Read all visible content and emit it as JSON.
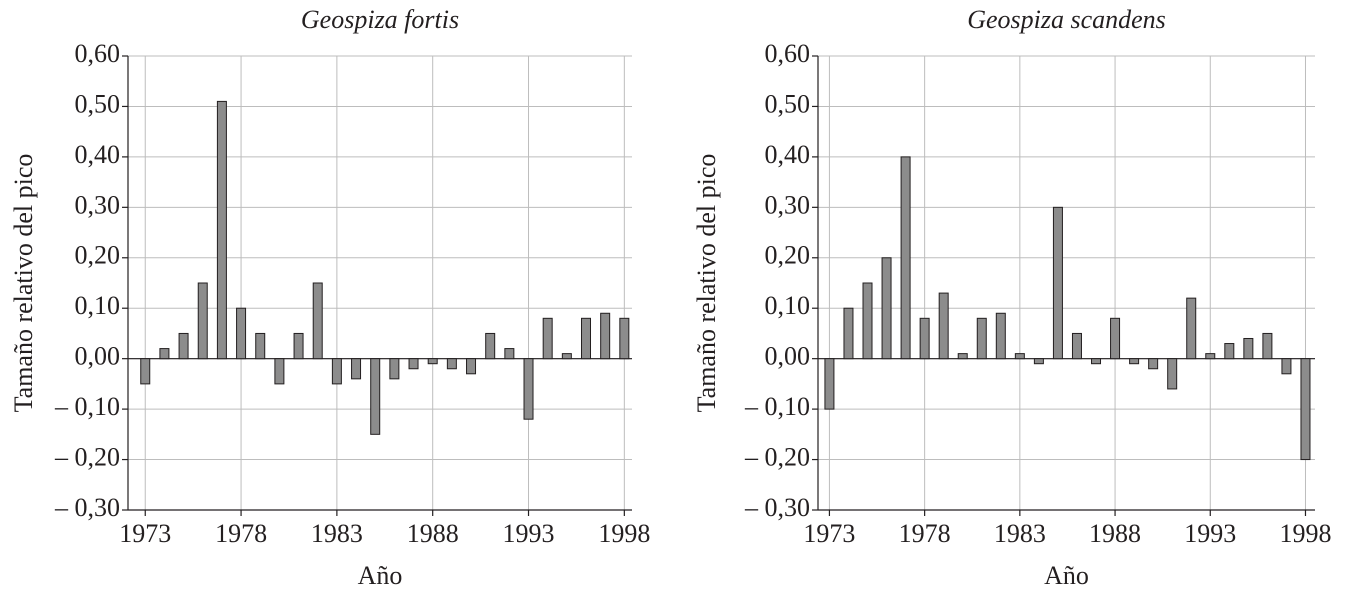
{
  "chart_data": [
    {
      "type": "bar",
      "title": "Geospiza fortis",
      "x_label": "Año",
      "y_label": "Tamaño relativo del pico",
      "x": [
        1973,
        1974,
        1975,
        1976,
        1977,
        1978,
        1979,
        1980,
        1981,
        1982,
        1983,
        1984,
        1985,
        1986,
        1987,
        1988,
        1989,
        1990,
        1991,
        1992,
        1993,
        1994,
        1995,
        1996,
        1997,
        1998
      ],
      "values": [
        -0.05,
        0.02,
        0.05,
        0.15,
        0.51,
        0.1,
        0.05,
        -0.05,
        0.05,
        0.15,
        -0.05,
        -0.04,
        -0.15,
        -0.04,
        -0.02,
        -0.01,
        -0.02,
        -0.03,
        0.05,
        0.02,
        -0.12,
        0.08,
        0.01,
        0.08,
        0.09,
        0.08
      ],
      "color": "#8c8c8c",
      "xlim": [
        1972.1,
        1998.4
      ],
      "ylim": [
        -0.3,
        0.6
      ],
      "xticks": [
        1973,
        1978,
        1983,
        1988,
        1993,
        1998
      ],
      "yticks": [
        {
          "value": -0.3,
          "label": "– 0,30"
        },
        {
          "value": -0.2,
          "label": "– 0,20"
        },
        {
          "value": -0.1,
          "label": "– 0,10"
        },
        {
          "value": 0,
          "label": "0,00"
        },
        {
          "value": 0.1,
          "label": "0,10"
        },
        {
          "value": 0.2,
          "label": "0,20"
        },
        {
          "value": 0.3,
          "label": "0,30"
        },
        {
          "value": 0.4,
          "label": "0,40"
        },
        {
          "value": 0.5,
          "label": "0,50"
        },
        {
          "value": 0.6,
          "label": "0,60"
        }
      ],
      "grid": true
    },
    {
      "type": "bar",
      "title": "Geospiza scandens",
      "x_label": "Año",
      "y_label": "Tamaño relativo del pico",
      "x": [
        1973,
        1974,
        1975,
        1976,
        1977,
        1978,
        1979,
        1980,
        1981,
        1982,
        1983,
        1984,
        1985,
        1986,
        1987,
        1988,
        1989,
        1990,
        1991,
        1992,
        1993,
        1994,
        1995,
        1996,
        1997,
        1998
      ],
      "values": [
        -0.1,
        0.1,
        0.15,
        0.2,
        0.4,
        0.08,
        0.13,
        0.01,
        0.08,
        0.09,
        0.01,
        -0.01,
        0.3,
        0.05,
        -0.01,
        0.08,
        -0.01,
        -0.02,
        -0.06,
        0.12,
        0.01,
        0.03,
        0.04,
        0.05,
        -0.03,
        -0.2
      ],
      "color": "#8c8c8c",
      "xlim": [
        1972.4,
        1998.5
      ],
      "ylim": [
        -0.3,
        0.6
      ],
      "xticks": [
        1973,
        1978,
        1983,
        1988,
        1993,
        1998
      ],
      "yticks": [
        {
          "value": -0.3,
          "label": "– 0,30"
        },
        {
          "value": -0.2,
          "label": "– 0,20"
        },
        {
          "value": -0.1,
          "label": "– 0,10"
        },
        {
          "value": 0,
          "label": "0,00"
        },
        {
          "value": 0.1,
          "label": "0,10"
        },
        {
          "value": 0.2,
          "label": "0,20"
        },
        {
          "value": 0.3,
          "label": "0,30"
        },
        {
          "value": 0.4,
          "label": "0,40"
        },
        {
          "value": 0.5,
          "label": "0,50"
        },
        {
          "value": 0.6,
          "label": "0,60"
        }
      ],
      "grid": true
    }
  ]
}
